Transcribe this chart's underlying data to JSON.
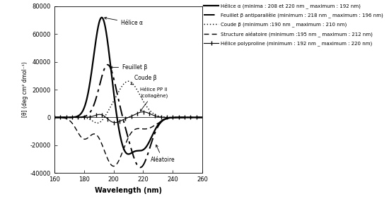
{
  "xlim": [
    160,
    260
  ],
  "ylim": [
    -40000,
    80000
  ],
  "xlabel": "Wavelength (nm)",
  "ylabel": "[θ] (deg cm² dmol⁻¹)",
  "xticks": [
    160,
    180,
    200,
    220,
    240,
    260
  ],
  "yticks": [
    -40000,
    -20000,
    0,
    20000,
    40000,
    60000,
    80000
  ],
  "bg_color": "#ffffff",
  "legend_entries": [
    {
      "label": "Hélice α (minima : 208 et 220 nm _ maximum : 192 nm)"
    },
    {
      "label": "Feuillet β antiparallèle (minimum : 218 nm _ maximum : 196 nm)"
    },
    {
      "label": "Coude β (minimum :190 nm _ maximum : 210 nm)"
    },
    {
      "label": "Structure aléatoire (minimum :195 nm _ maximum : 212 nm)"
    },
    {
      "label": "Hélice polyproline (minimum : 192 nm _ maximum : 220 nm)"
    }
  ]
}
